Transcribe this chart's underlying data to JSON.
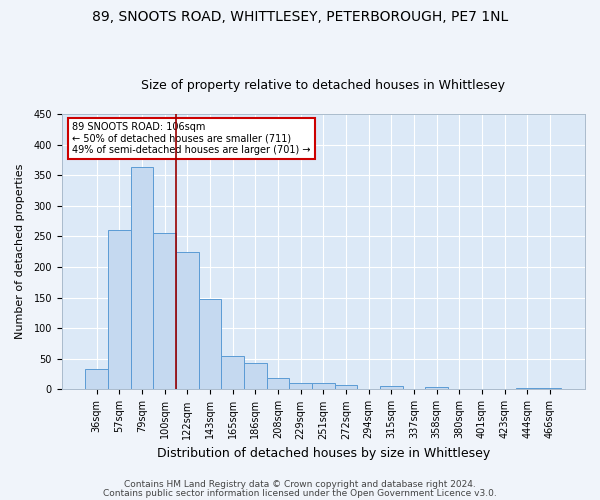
{
  "title": "89, SNOOTS ROAD, WHITTLESEY, PETERBOROUGH, PE7 1NL",
  "subtitle": "Size of property relative to detached houses in Whittlesey",
  "xlabel": "Distribution of detached houses by size in Whittlesey",
  "ylabel": "Number of detached properties",
  "categories": [
    "36sqm",
    "57sqm",
    "79sqm",
    "100sqm",
    "122sqm",
    "143sqm",
    "165sqm",
    "186sqm",
    "208sqm",
    "229sqm",
    "251sqm",
    "272sqm",
    "294sqm",
    "315sqm",
    "337sqm",
    "358sqm",
    "380sqm",
    "401sqm",
    "423sqm",
    "444sqm",
    "466sqm"
  ],
  "values": [
    33,
    260,
    363,
    255,
    225,
    148,
    55,
    44,
    19,
    11,
    11,
    7,
    0,
    6,
    0,
    4,
    0,
    0,
    0,
    3,
    3
  ],
  "bar_color": "#c5d9f0",
  "bar_edge_color": "#5b9bd5",
  "red_line_x": 3.5,
  "annotation_line1": "89 SNOOTS ROAD: 106sqm",
  "annotation_line2": "← 50% of detached houses are smaller (711)",
  "annotation_line3": "49% of semi-detached houses are larger (701) →",
  "annotation_box_color": "#ffffff",
  "annotation_box_edge": "#cc0000",
  "background_color": "#dce9f7",
  "grid_color": "#ffffff",
  "footer1": "Contains HM Land Registry data © Crown copyright and database right 2024.",
  "footer2": "Contains public sector information licensed under the Open Government Licence v3.0.",
  "ylim": [
    0,
    450
  ],
  "yticks": [
    0,
    50,
    100,
    150,
    200,
    250,
    300,
    350,
    400,
    450
  ],
  "title_fontsize": 10,
  "subtitle_fontsize": 9,
  "xlabel_fontsize": 9,
  "ylabel_fontsize": 8,
  "tick_fontsize": 7,
  "footer_fontsize": 6.5
}
